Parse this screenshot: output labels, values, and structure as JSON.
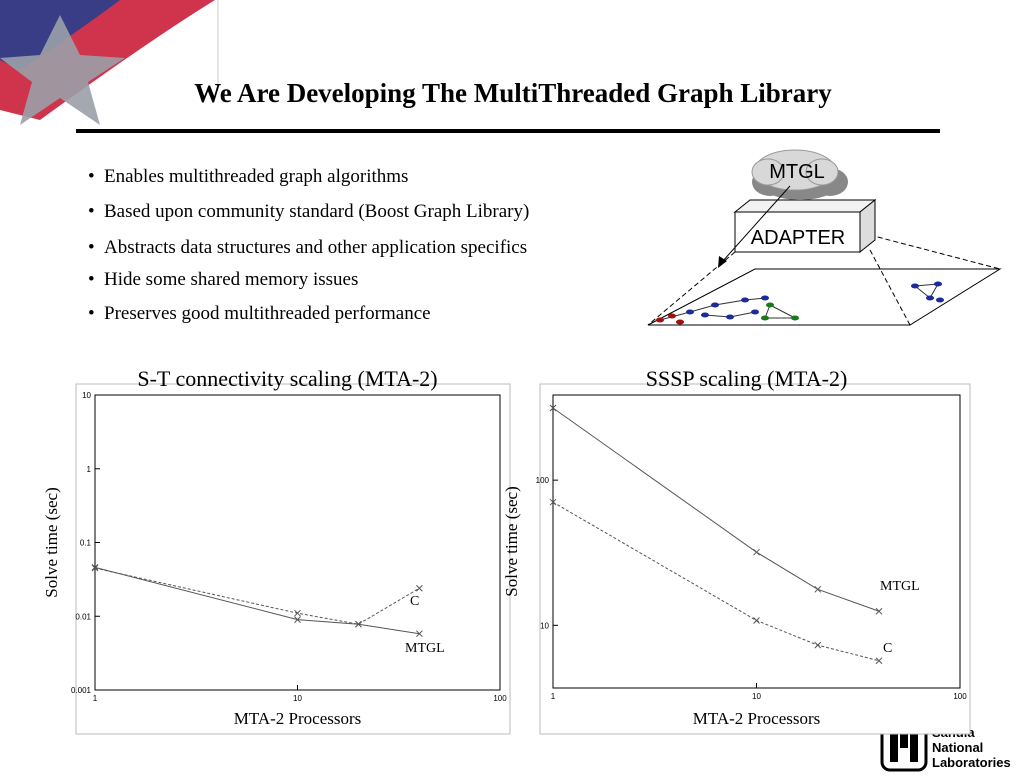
{
  "header": {
    "title": "We Are Developing The MultiThreaded Graph Library"
  },
  "bullets": [
    "Enables multithreaded graph algorithms",
    "Based upon community standard (Boost Graph Library)",
    "Abstracts data structures and other application specifics",
    "Hide some shared memory issues",
    "Preserves good multithreaded performance"
  ],
  "diagram": {
    "cloud_label": "MTGL",
    "box_label": "ADAPTER"
  },
  "logo": {
    "lines": [
      "Sandia",
      "National",
      "Laboratories"
    ]
  },
  "chart_data": [
    {
      "type": "line",
      "title": "S-T connectivity scaling (MTA-2)",
      "x_label": "MTA-2 Processors",
      "y_label": "Solve time (sec)",
      "xscale": "log",
      "yscale": "log",
      "xlim": [
        1,
        100
      ],
      "xticks": [
        1,
        10,
        100
      ],
      "ylim": [
        0.001,
        10
      ],
      "yticks": [
        0.001,
        0.01,
        0.1,
        1,
        10
      ],
      "x": [
        1,
        10,
        20,
        40
      ],
      "series": [
        {
          "name": "MTGL",
          "color": "#555555",
          "style": "solid",
          "values": [
            0.046,
            0.009,
            0.0078,
            0.0058
          ]
        },
        {
          "name": "C",
          "color": "#555555",
          "style": "dashed",
          "values": [
            0.045,
            0.011,
            0.0078,
            0.024
          ]
        }
      ]
    },
    {
      "type": "line",
      "title": "SSSP scaling (MTA-2)",
      "x_label": "MTA-2 Processors",
      "y_label": "Solve time (sec)",
      "xscale": "log",
      "yscale": "log",
      "xlim": [
        1,
        100
      ],
      "xticks": [
        1,
        10,
        100
      ],
      "ylim": [
        3.7,
        386
      ],
      "yticks": [
        10,
        100
      ],
      "x": [
        1,
        10,
        20,
        40
      ],
      "series": [
        {
          "name": "MTGL",
          "color": "#555555",
          "style": "solid",
          "values": [
            314,
            31.9,
            17.7,
            12.5
          ]
        },
        {
          "name": "C",
          "color": "#555555",
          "style": "dashed",
          "values": [
            70.5,
            10.8,
            7.3,
            5.7
          ]
        }
      ]
    }
  ]
}
